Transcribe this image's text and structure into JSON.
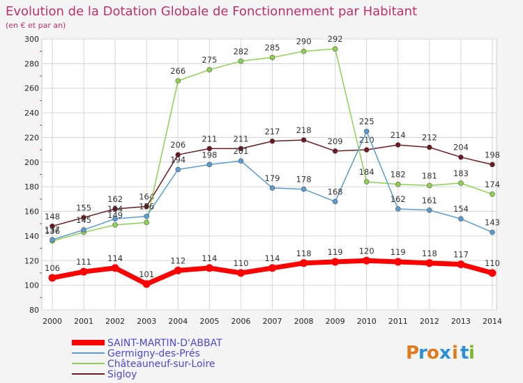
{
  "title": "Evolution de la Dotation Globale de Fonctionnement par Habitant",
  "subtitle": "(en € et par an)",
  "brand": {
    "letters": [
      "P",
      "r",
      "o",
      "x",
      "i",
      "t",
      "i"
    ],
    "colors": [
      "#e07b1a",
      "#2a8fd6",
      "#e07b1a",
      "#2a8fd6",
      "#e07b1a",
      "#2a8fd6",
      "#7ab82a"
    ]
  },
  "chart_data": {
    "type": "line",
    "title": "Evolution de la Dotation Globale de Fonctionnement par Habitant",
    "subtitle": "(en € et par an)",
    "x": [
      "2000",
      "2001",
      "2002",
      "2003",
      "2004",
      "2005",
      "2006",
      "2007",
      "2008",
      "2009",
      "2010",
      "2011",
      "2012",
      "2013",
      "2014"
    ],
    "ylim": [
      80,
      300
    ],
    "yticks": [
      80,
      100,
      120,
      140,
      160,
      180,
      200,
      220,
      240,
      260,
      280,
      300
    ],
    "grid": true,
    "legend_position": "bottom-left",
    "series": [
      {
        "name": "Sigloy",
        "color": "#6b1a22",
        "width": 1.5,
        "values": [
          148,
          155,
          162,
          164,
          206,
          211,
          211,
          217,
          218,
          209,
          210,
          214,
          212,
          204,
          198
        ],
        "labels": [
          148,
          155,
          162,
          164,
          206,
          211,
          211,
          217,
          218,
          209,
          210,
          214,
          212,
          204,
          198
        ]
      },
      {
        "name": "Châteauneuf-sur-Loire",
        "color": "#8ed150",
        "width": 1.5,
        "values": [
          136,
          143,
          149,
          151,
          266,
          275,
          282,
          285,
          290,
          292,
          184,
          182,
          181,
          183,
          174
        ],
        "labels": [
          136,
          null,
          149,
          null,
          266,
          275,
          282,
          285,
          290,
          292,
          184,
          182,
          181,
          183,
          174
        ]
      },
      {
        "name": "Germigny-des-Prés",
        "color": "#5a9bd0",
        "width": 1.5,
        "values": [
          137,
          145,
          154,
          156,
          194,
          198,
          201,
          179,
          178,
          168,
          225,
          162,
          161,
          154,
          143
        ],
        "labels": [
          137,
          145,
          154,
          156,
          194,
          198,
          201,
          179,
          178,
          168,
          225,
          162,
          161,
          154,
          143
        ]
      },
      {
        "name": "SAINT-MARTIN-D'ABBAT",
        "color": "#ff0000",
        "width": 7,
        "values": [
          106,
          111,
          114,
          101,
          112,
          114,
          110,
          114,
          118,
          119,
          120,
          119,
          118,
          117,
          110
        ],
        "labels": [
          106,
          111,
          114,
          101,
          112,
          114,
          110,
          114,
          118,
          119,
          120,
          119,
          118,
          117,
          110
        ]
      }
    ],
    "legend_order": [
      "SAINT-MARTIN-D'ABBAT",
      "Germigny-des-Prés",
      "Châteauneuf-sur-Loire",
      "Sigloy"
    ]
  }
}
